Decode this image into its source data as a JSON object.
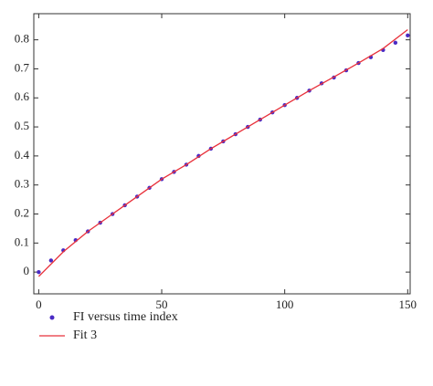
{
  "chart_data": {
    "type": "scatter",
    "xlim": [
      -2,
      151
    ],
    "xticks": [
      0,
      50,
      100,
      150
    ],
    "ylim": [
      -0.075,
      0.89
    ],
    "yticks": [
      0,
      0.1,
      0.2,
      0.3,
      0.4,
      0.5,
      0.6,
      0.7,
      0.8
    ],
    "series": [
      {
        "name": "FI versus time index",
        "type": "scatter",
        "color": "#4a2bc4",
        "x": [
          0,
          5,
          10,
          15,
          20,
          25,
          30,
          35,
          40,
          45,
          50,
          55,
          60,
          65,
          70,
          75,
          80,
          85,
          90,
          95,
          100,
          105,
          110,
          115,
          120,
          125,
          130,
          135,
          140,
          145,
          150
        ],
        "values": [
          0,
          0.04,
          0.075,
          0.11,
          0.14,
          0.17,
          0.2,
          0.23,
          0.26,
          0.29,
          0.32,
          0.345,
          0.37,
          0.4,
          0.425,
          0.45,
          0.475,
          0.5,
          0.525,
          0.55,
          0.575,
          0.6,
          0.625,
          0.65,
          0.67,
          0.695,
          0.72,
          0.74,
          0.765,
          0.79,
          0.815
        ]
      },
      {
        "name": "Fit 3",
        "type": "line",
        "color": "#e8303a",
        "x": [
          0,
          10,
          20,
          30,
          40,
          50,
          60,
          70,
          80,
          90,
          100,
          110,
          120,
          130,
          140,
          150
        ],
        "values": [
          -0.015,
          0.07,
          0.14,
          0.2,
          0.26,
          0.32,
          0.37,
          0.425,
          0.475,
          0.525,
          0.575,
          0.625,
          0.672,
          0.72,
          0.77,
          0.835
        ]
      }
    ]
  }
}
